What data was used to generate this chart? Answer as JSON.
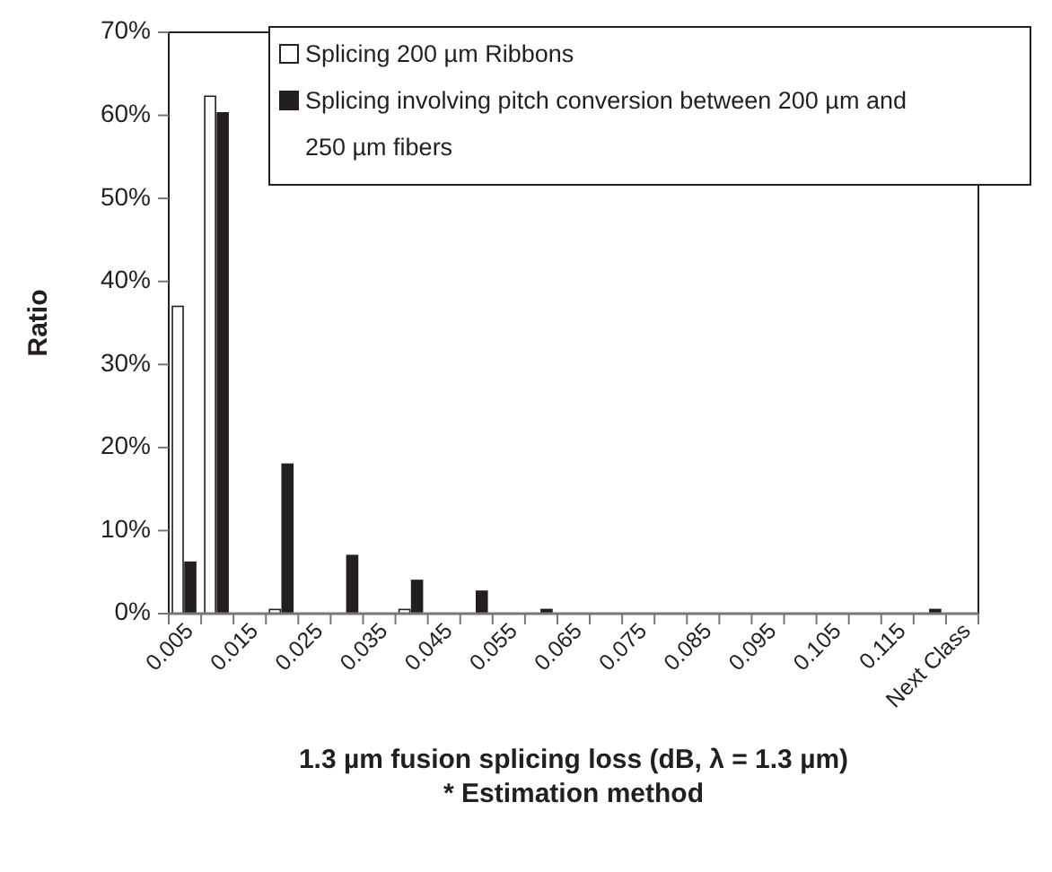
{
  "chart_data": {
    "type": "bar",
    "xlabel": "1.3 µm fusion splicing loss (dB, λ = 1.3 µm)\n* Estimation method",
    "ylabel": "Ratio",
    "categories": [
      "0.005",
      null,
      "0.015",
      null,
      "0.025",
      null,
      "0.035",
      null,
      "0.045",
      null,
      "0.055",
      null,
      "0.065",
      null,
      "0.075",
      null,
      "0.085",
      null,
      "0.095",
      null,
      "0.105",
      null,
      "0.115",
      null,
      "Next Class"
    ],
    "series": [
      {
        "name": "Splicing 200 µm Ribbons",
        "color": "#ffffff",
        "values": [
          37,
          62.3,
          0,
          0.5,
          0,
          0,
          0,
          0.5,
          0,
          0,
          0,
          0,
          0,
          0,
          0,
          0,
          0,
          0,
          0,
          0,
          0,
          0,
          0,
          0,
          0
        ]
      },
      {
        "name": "Splicing involving pitch conversion between 200 µm and 250 µm fibers",
        "color": "#231f20",
        "values": [
          6.2,
          60.3,
          0,
          18,
          0,
          7,
          0,
          4,
          0,
          2.7,
          0,
          0.5,
          0,
          0,
          0,
          0,
          0,
          0,
          0,
          0,
          0,
          0,
          0,
          0.5,
          0
        ]
      }
    ],
    "ylim": [
      0,
      70
    ],
    "yticks": [
      {
        "value": 0,
        "label": "0%"
      },
      {
        "value": 10,
        "label": "10%"
      },
      {
        "value": 20,
        "label": "20%"
      },
      {
        "value": 30,
        "label": "30%"
      },
      {
        "value": 40,
        "label": "40%"
      },
      {
        "value": 50,
        "label": "50%"
      },
      {
        "value": 60,
        "label": "60%"
      },
      {
        "value": 70,
        "label": "70%"
      }
    ],
    "grid": false,
    "legend": "top right"
  }
}
